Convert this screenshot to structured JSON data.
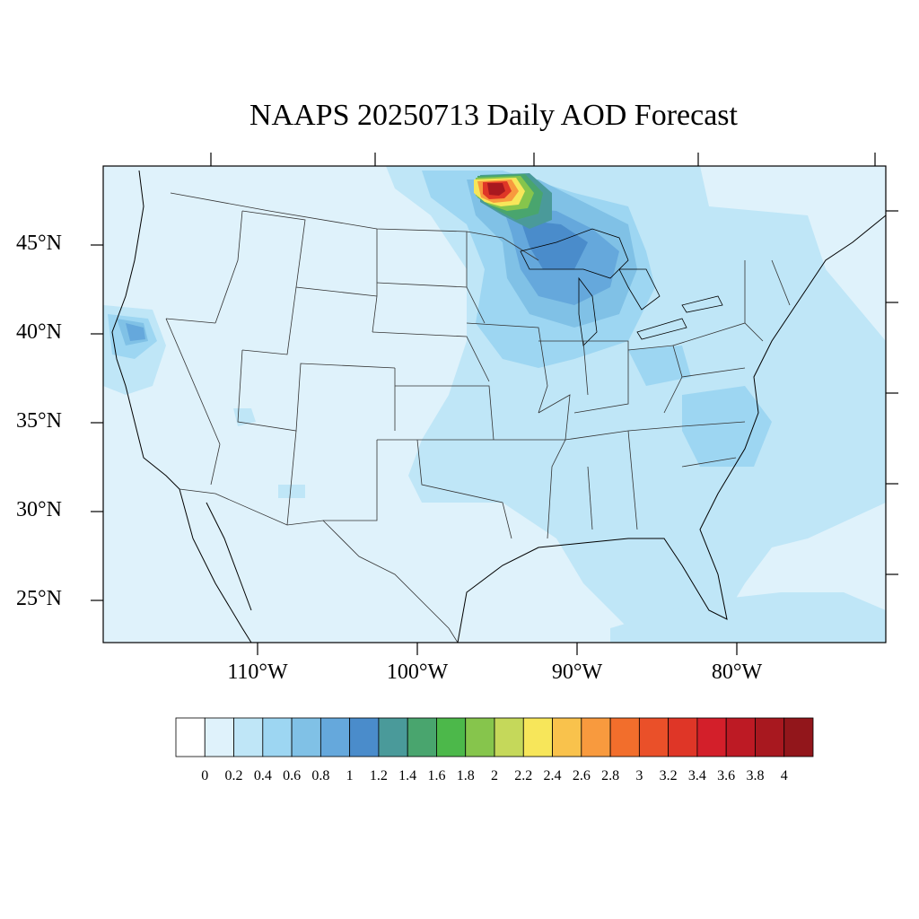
{
  "title": "NAAPS 20250713 Daily AOD Forecast",
  "lat_labels": [
    "45°N",
    "40°N",
    "35°N",
    "30°N",
    "25°N"
  ],
  "lon_labels": [
    "110°W",
    "100°W",
    "90°W",
    "80°W"
  ],
  "colorbar": {
    "labels": [
      "0",
      "0.2",
      "0.4",
      "0.6",
      "0.8",
      "1",
      "1.2",
      "1.4",
      "1.6",
      "1.8",
      "2",
      "2.2",
      "2.4",
      "2.6",
      "2.8",
      "3",
      "3.2",
      "3.4",
      "3.6",
      "3.8",
      "4"
    ],
    "colors": [
      "#ffffff",
      "#dff2fb",
      "#bfe6f7",
      "#9dd6f2",
      "#80c1e6",
      "#65a8dc",
      "#4a8ccb",
      "#4a9a9a",
      "#49a56e",
      "#4cb84a",
      "#86c54c",
      "#c5d85a",
      "#f7e65a",
      "#f9c24c",
      "#f89a3e",
      "#f26e2c",
      "#ea5029",
      "#df3627",
      "#d31f2a",
      "#bd1a24",
      "#a8181f",
      "#92161b"
    ]
  },
  "colors": {
    "background_aod": "#dff2fb",
    "border": "#000000",
    "state_lines": "#333333"
  }
}
